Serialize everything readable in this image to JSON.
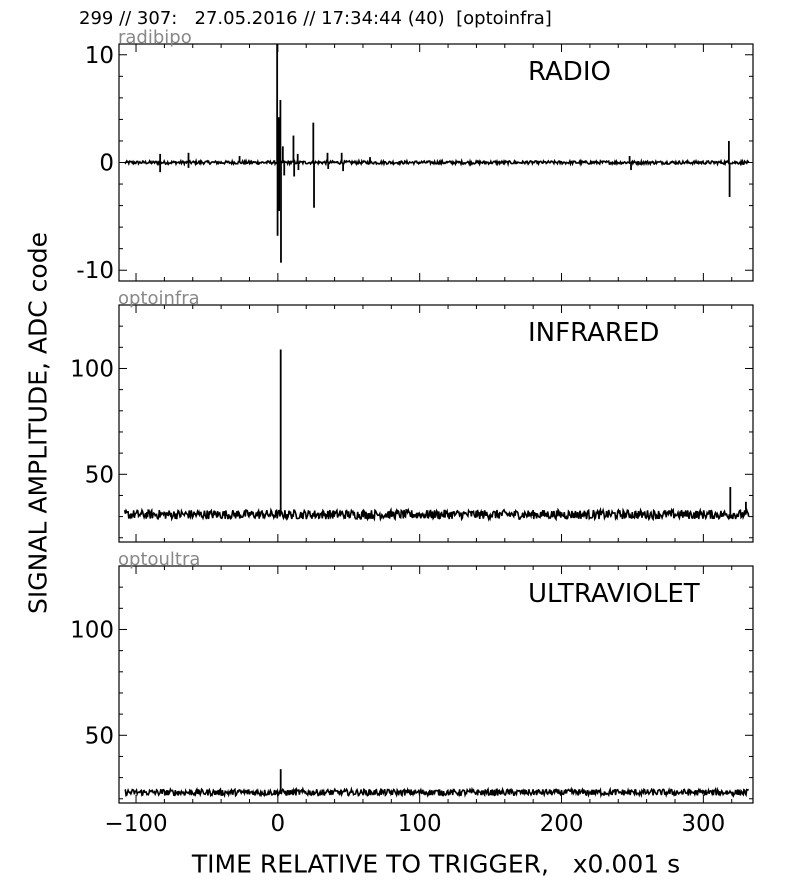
{
  "header": {
    "text": "299 // 307:   27.05.2016 // 17:34:44 (40)  [optoinfra]"
  },
  "axes": {
    "ylabel": "SIGNAL AMPLITUDE,  ADC code",
    "xlabel": "TIME RELATIVE TO TRIGGER,   x0.001 s",
    "xlim": [
      -112,
      335
    ],
    "xticks": [
      -100,
      0,
      100,
      200,
      300
    ],
    "xtick_labels": [
      "−100",
      "0",
      "100",
      "200",
      "300"
    ]
  },
  "chart_data": [
    {
      "type": "line",
      "title": "RADIO",
      "channel": "radibipo",
      "ylim": [
        -11,
        11
      ],
      "yticks": [
        -10,
        0,
        10
      ],
      "ytick_labels": [
        "-10",
        "0",
        "10"
      ],
      "baseline": 0,
      "noise": 0.15,
      "spikes": [
        {
          "x": -83,
          "y": 0.8
        },
        {
          "x": -83,
          "y": -0.9
        },
        {
          "x": -63,
          "y": 0.9
        },
        {
          "x": -63,
          "y": -0.5
        },
        {
          "x": -27,
          "y": 0.6
        },
        {
          "x": -0.5,
          "y": 11
        },
        {
          "x": -0.2,
          "y": -6.8
        },
        {
          "x": 0.6,
          "y": 4.2
        },
        {
          "x": 0.9,
          "y": -4.5
        },
        {
          "x": 1.8,
          "y": 5.8
        },
        {
          "x": 2.2,
          "y": -9.3
        },
        {
          "x": 3.5,
          "y": 1.5
        },
        {
          "x": 4.5,
          "y": -1.2
        },
        {
          "x": 11,
          "y": 2.5
        },
        {
          "x": 11.5,
          "y": -1.3
        },
        {
          "x": 14,
          "y": 0.8
        },
        {
          "x": 14.5,
          "y": -0.7
        },
        {
          "x": 25,
          "y": 3.7
        },
        {
          "x": 25.5,
          "y": -4.2
        },
        {
          "x": 35,
          "y": 0.9
        },
        {
          "x": 35.5,
          "y": -0.6
        },
        {
          "x": 45,
          "y": 0.9
        },
        {
          "x": 46,
          "y": -0.8
        },
        {
          "x": 65,
          "y": 0.5
        },
        {
          "x": 248,
          "y": 0.6
        },
        {
          "x": 249,
          "y": -0.7
        },
        {
          "x": 318,
          "y": 2.0
        },
        {
          "x": 318.5,
          "y": -3.2
        }
      ]
    },
    {
      "type": "line",
      "title": "INFRARED",
      "channel": "optoinfra",
      "ylim": [
        18,
        130
      ],
      "yticks": [
        50,
        100
      ],
      "ytick_labels": [
        "50",
        "100"
      ],
      "baseline": 31,
      "noise": 2.2,
      "spikes": [
        {
          "x": 2,
          "y": 109
        },
        {
          "x": 319,
          "y": 44
        },
        {
          "x": 330,
          "y": 37
        }
      ]
    },
    {
      "type": "line",
      "title": "ULTRAVIOLET",
      "channel": "optoultra",
      "ylim": [
        18,
        130
      ],
      "yticks": [
        50,
        100
      ],
      "ytick_labels": [
        "50",
        "100"
      ],
      "baseline": 23,
      "noise": 1.5,
      "spikes": [
        {
          "x": 2,
          "y": 34
        }
      ]
    }
  ]
}
